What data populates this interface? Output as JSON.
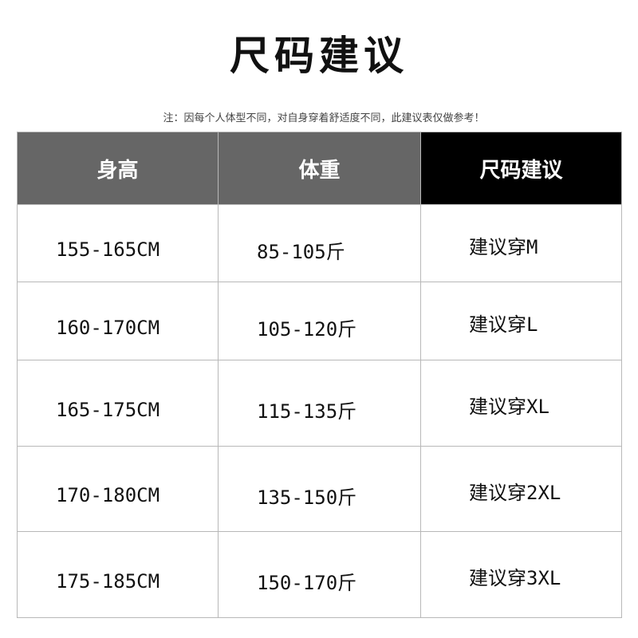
{
  "title": "尺码建议",
  "note": "注：因每个人体型不同，对自身穿着舒适度不同，此建议表仅做参考！",
  "colors": {
    "header_gray": "#666666",
    "header_black": "#000000",
    "border": "#b8b8b8"
  },
  "table": {
    "headers": [
      "身高",
      "体重",
      "尺码建议"
    ],
    "rows": [
      {
        "height": "155-165CM",
        "weight": "85-105斤",
        "size": "建议穿M"
      },
      {
        "height": "160-170CM",
        "weight": "105-120斤",
        "size": "建议穿L"
      },
      {
        "height": "165-175CM",
        "weight": "115-135斤",
        "size": "建议穿XL"
      },
      {
        "height": "170-180CM",
        "weight": "135-150斤",
        "size": "建议穿2XL"
      },
      {
        "height": "175-185CM",
        "weight": "150-170斤",
        "size": "建议穿3XL"
      }
    ]
  }
}
